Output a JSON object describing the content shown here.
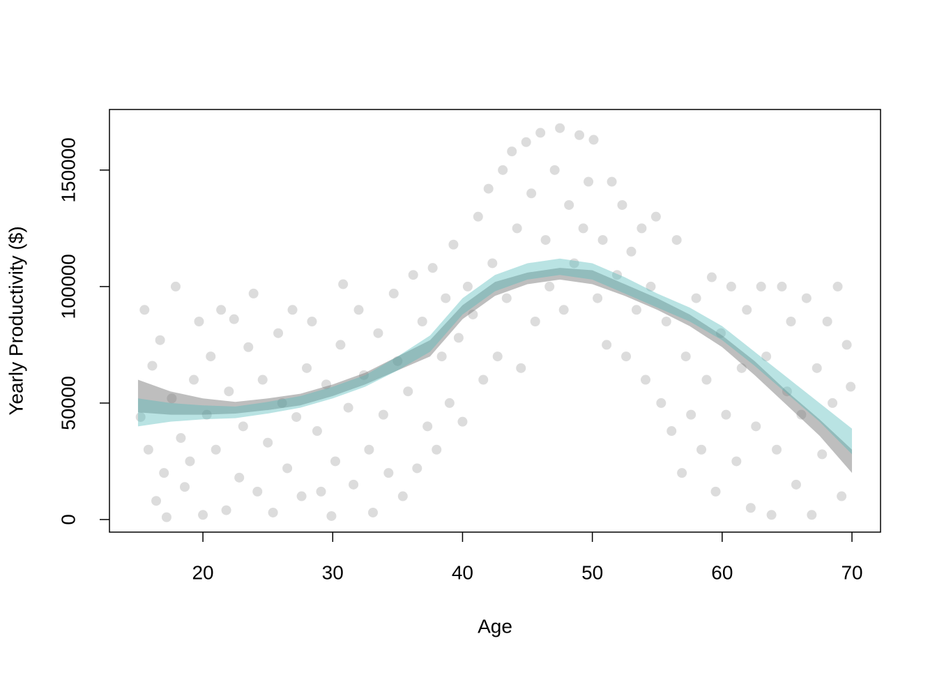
{
  "chart_data": {
    "type": "scatter",
    "x_label": "Age",
    "y_label": "Yearly Productivity ($)",
    "xlim": [
      12.8,
      72.2
    ],
    "ylim": [
      -5400,
      176000
    ],
    "xticks": [
      20,
      30,
      40,
      50,
      60,
      70
    ],
    "yticks": [
      0,
      50000,
      100000,
      150000
    ],
    "point_color": "rgba(140,140,140,0.3)",
    "x": [
      15.2,
      15.5,
      15.8,
      16.1,
      16.4,
      16.7,
      17.0,
      17.2,
      17.6,
      17.9,
      18.3,
      18.6,
      19.0,
      19.3,
      19.7,
      20.0,
      20.3,
      20.6,
      21.0,
      21.4,
      21.8,
      22.0,
      22.4,
      22.8,
      23.1,
      23.5,
      23.9,
      24.2,
      24.6,
      25.0,
      25.4,
      25.8,
      26.1,
      26.5,
      26.9,
      27.2,
      27.6,
      28.0,
      28.4,
      28.8,
      29.1,
      29.5,
      29.9,
      30.2,
      30.6,
      30.8,
      31.2,
      31.6,
      32.0,
      32.4,
      32.8,
      33.1,
      33.5,
      33.9,
      34.3,
      34.7,
      35.0,
      35.4,
      35.8,
      36.2,
      36.5,
      36.9,
      37.3,
      37.7,
      38.0,
      38.4,
      38.7,
      39.0,
      39.3,
      39.7,
      40.0,
      40.4,
      40.8,
      41.2,
      41.6,
      42.0,
      42.3,
      42.7,
      43.1,
      43.4,
      43.8,
      44.2,
      44.5,
      44.9,
      45.3,
      45.6,
      46.0,
      46.4,
      46.7,
      47.1,
      47.5,
      47.8,
      48.2,
      48.6,
      49.0,
      49.3,
      49.7,
      50.1,
      50.4,
      50.8,
      51.1,
      51.5,
      51.9,
      52.3,
      52.6,
      53.0,
      53.4,
      53.8,
      54.1,
      54.5,
      54.9,
      55.3,
      55.7,
      56.1,
      56.5,
      56.9,
      57.2,
      57.6,
      58.0,
      58.4,
      58.8,
      59.2,
      59.5,
      59.9,
      60.3,
      60.7,
      61.1,
      61.5,
      61.9,
      62.2,
      62.6,
      63.0,
      63.4,
      63.8,
      64.2,
      64.6,
      65.0,
      65.3,
      65.7,
      66.1,
      66.5,
      66.9,
      67.3,
      67.7,
      68.1,
      68.5,
      68.9,
      69.2,
      69.6,
      69.9
    ],
    "y": [
      44000,
      90000,
      30000,
      66000,
      8000,
      77000,
      20000,
      1000,
      52000,
      100000,
      35000,
      14000,
      25000,
      60000,
      85000,
      2000,
      45000,
      70000,
      30000,
      90000,
      4000,
      55000,
      86000,
      18000,
      40000,
      74000,
      97000,
      12000,
      60000,
      33000,
      3000,
      80000,
      50000,
      22000,
      90000,
      44000,
      10000,
      65000,
      85000,
      38000,
      12000,
      58000,
      1500,
      25000,
      75000,
      101000,
      48000,
      15000,
      90000,
      62000,
      30000,
      3000,
      80000,
      45000,
      20000,
      97000,
      68000,
      10000,
      55000,
      105000,
      22000,
      85000,
      40000,
      108000,
      30000,
      70000,
      95000,
      50000,
      118000,
      78000,
      42000,
      100000,
      88000,
      130000,
      60000,
      142000,
      110000,
      70000,
      150000,
      95000,
      158000,
      125000,
      65000,
      162000,
      140000,
      85000,
      166000,
      120000,
      100000,
      150000,
      168000,
      90000,
      135000,
      110000,
      165000,
      125000,
      145000,
      163000,
      95000,
      120000,
      75000,
      145000,
      105000,
      135000,
      70000,
      115000,
      90000,
      125000,
      60000,
      100000,
      130000,
      50000,
      85000,
      38000,
      120000,
      20000,
      70000,
      45000,
      95000,
      30000,
      60000,
      104000,
      12000,
      80000,
      45000,
      100000,
      25000,
      65000,
      90000,
      5000,
      40000,
      100000,
      70000,
      2000,
      30000,
      100000,
      55000,
      85000,
      15000,
      45000,
      95000,
      2000,
      65000,
      28000,
      85000,
      50000,
      100000,
      10000,
      75000,
      57000
    ],
    "band_x": [
      15,
      17.5,
      20,
      22.5,
      25,
      27.5,
      30,
      32.5,
      35,
      37.5,
      40,
      42.5,
      45,
      47.5,
      50,
      52.5,
      55,
      57.5,
      60,
      62.5,
      65,
      67.5,
      70
    ],
    "bands": [
      {
        "color": "rgba(110,110,110,0.45)",
        "lower": [
          46000,
          45000,
          45000,
          45500,
          47000,
          49000,
          53000,
          58000,
          64000,
          70000,
          86000,
          96000,
          101000,
          103000,
          101000,
          96000,
          90000,
          83000,
          74000,
          62000,
          49000,
          36000,
          20000
        ],
        "upper": [
          60000,
          55000,
          52000,
          50500,
          52000,
          54000,
          58000,
          63000,
          70000,
          77000,
          92000,
          102000,
          106000,
          108000,
          107000,
          101000,
          95000,
          88000,
          79000,
          68000,
          55000,
          43000,
          30000
        ]
      },
      {
        "color": "rgba(80,185,185,0.4)",
        "lower": [
          40000,
          42000,
          43000,
          43500,
          45500,
          48000,
          52000,
          57000,
          64000,
          72000,
          88000,
          98000,
          103000,
          105000,
          103000,
          97000,
          91000,
          85000,
          77000,
          66000,
          54000,
          42000,
          28000
        ],
        "upper": [
          52000,
          50000,
          49000,
          48500,
          50500,
          53000,
          57000,
          62000,
          70000,
          79000,
          95000,
          105000,
          110000,
          112000,
          110000,
          104000,
          97000,
          91000,
          83000,
          72000,
          61000,
          50000,
          39000
        ]
      }
    ]
  }
}
